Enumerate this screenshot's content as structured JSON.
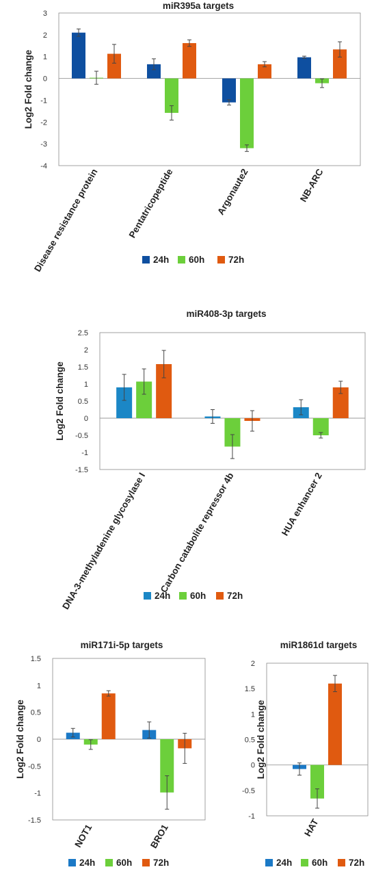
{
  "chart_data": [
    {
      "type": "bar",
      "title": "miR395a targets",
      "ylabel": "Log2 Fold change",
      "xlabel": "",
      "ylim": [
        -4,
        3
      ],
      "yticks": [
        3,
        2,
        1,
        0,
        -1,
        -2,
        -3,
        -4
      ],
      "categories": [
        "Disease resistance protein",
        "Pentatricopeptide",
        "Argonaute2",
        "NB-ARC"
      ],
      "series": [
        {
          "name": "24h",
          "color": "#0e4fa0",
          "values": [
            2.1,
            0.65,
            -1.1,
            0.97
          ],
          "errors": [
            0.17,
            0.25,
            0.12,
            0.05
          ]
        },
        {
          "name": "60h",
          "color": "#6ccf3b",
          "values": [
            0.03,
            -1.58,
            -3.2,
            -0.22
          ],
          "errors": [
            0.3,
            0.33,
            0.15,
            0.2
          ]
        },
        {
          "name": "72h",
          "color": "#e05a10",
          "values": [
            1.13,
            1.62,
            0.65,
            1.33
          ],
          "errors": [
            0.43,
            0.15,
            0.12,
            0.35
          ]
        }
      ]
    },
    {
      "type": "bar",
      "title": "miR408-3p targets",
      "ylabel": "Log2 Fold change",
      "xlabel": "",
      "ylim": [
        -1.5,
        2.5
      ],
      "yticks": [
        "2.5",
        "2",
        "1.5",
        "1",
        "0.5",
        "0",
        "-0.5",
        "-1",
        "-1.5"
      ],
      "categories": [
        "DNA-3-methyladenine glycosylase I",
        "Carbon catabolite repressor 4b",
        "HUA enhancer 2"
      ],
      "series": [
        {
          "name": "24h",
          "color": "#1b87c6",
          "values": [
            0.9,
            0.05,
            0.32
          ],
          "errors": [
            0.38,
            0.2,
            0.22
          ]
        },
        {
          "name": "60h",
          "color": "#6ccf3b",
          "values": [
            1.07,
            -0.83,
            -0.5
          ],
          "errors": [
            0.37,
            0.35,
            0.08
          ]
        },
        {
          "name": "72h",
          "color": "#e05a10",
          "values": [
            1.58,
            -0.08,
            0.9
          ],
          "errors": [
            0.4,
            0.3,
            0.18
          ]
        }
      ]
    },
    {
      "type": "bar",
      "title": "miR171i-5p targets",
      "ylabel": "Log2 Fold change",
      "xlabel": "",
      "ylim": [
        -1.5,
        1.5
      ],
      "yticks": [
        "1.5",
        "1",
        "0.5",
        "0",
        "-0.5",
        "-1",
        "-1.5"
      ],
      "categories": [
        "NOT1",
        "BRO1"
      ],
      "series": [
        {
          "name": "24h",
          "color": "#1b79c6",
          "values": [
            0.12,
            0.17
          ],
          "errors": [
            0.08,
            0.15
          ]
        },
        {
          "name": "60h",
          "color": "#6ccf3b",
          "values": [
            -0.1,
            -0.99
          ],
          "errors": [
            0.09,
            0.31
          ]
        },
        {
          "name": "72h",
          "color": "#e05a10",
          "values": [
            0.85,
            -0.17
          ],
          "errors": [
            0.05,
            0.28
          ]
        }
      ]
    },
    {
      "type": "bar",
      "title": "miR1861d targets",
      "ylabel": "Log2 Fold change",
      "xlabel": "",
      "ylim": [
        -1,
        2
      ],
      "yticks": [
        "2",
        "1.5",
        "1",
        "0.5",
        "0",
        "-0.5",
        "-1"
      ],
      "categories": [
        "HAT"
      ],
      "series": [
        {
          "name": "24h",
          "color": "#1b79c6",
          "values": [
            -0.08
          ],
          "errors": [
            0.12
          ]
        },
        {
          "name": "60h",
          "color": "#6ccf3b",
          "values": [
            -0.66
          ],
          "errors": [
            0.19
          ]
        },
        {
          "name": "72h",
          "color": "#e05a10",
          "values": [
            1.6
          ],
          "errors": [
            0.16
          ]
        }
      ]
    }
  ]
}
